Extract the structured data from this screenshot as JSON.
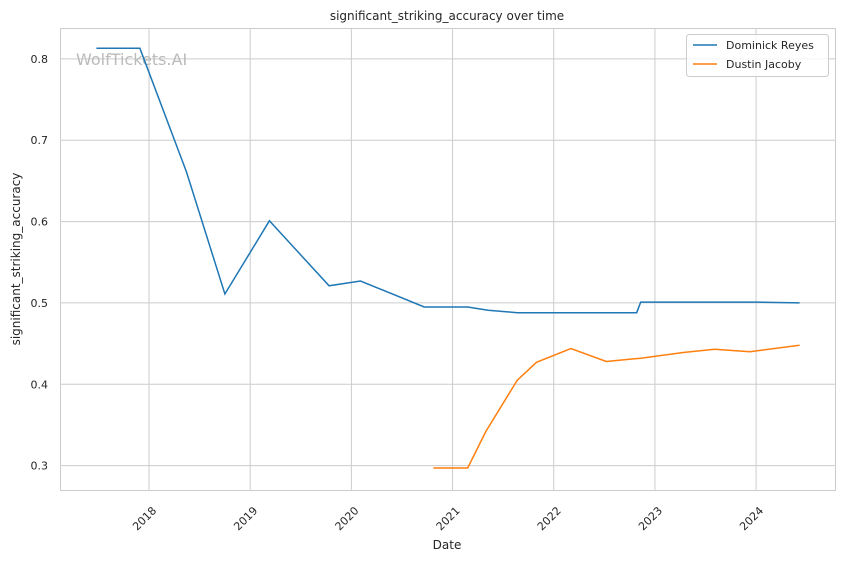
{
  "chart_data": {
    "type": "line",
    "title": "significant_striking_accuracy over time",
    "xlabel": "Date",
    "ylabel": "significant_striking_accuracy",
    "watermark": "WolfTickets.AI",
    "xlim": [
      2017.12,
      2024.78
    ],
    "ylim": [
      0.27,
      0.838
    ],
    "xticks": [
      2018,
      2019,
      2020,
      2021,
      2022,
      2023,
      2024
    ],
    "xtick_labels": [
      "2018",
      "2019",
      "2020",
      "2021",
      "2022",
      "2023",
      "2024"
    ],
    "yticks": [
      0.3,
      0.4,
      0.5,
      0.6,
      0.7,
      0.8
    ],
    "ytick_labels": [
      "0.3",
      "0.4",
      "0.5",
      "0.6",
      "0.7",
      "0.8"
    ],
    "grid": true,
    "legend_position": "top-right",
    "series": [
      {
        "name": "Dominick Reyes",
        "color": "#1f77b4",
        "x": [
          2017.48,
          2017.91,
          2018.37,
          2018.75,
          2019.19,
          2019.78,
          2020.09,
          2020.72,
          2021.15,
          2021.35,
          2021.64,
          2022.82,
          2022.86,
          2024.0,
          2024.43
        ],
        "y": [
          0.813,
          0.813,
          0.661,
          0.511,
          0.601,
          0.521,
          0.527,
          0.495,
          0.495,
          0.491,
          0.488,
          0.488,
          0.501,
          0.501,
          0.5
        ]
      },
      {
        "name": "Dustin Jacoby",
        "color": "#ff7f0e",
        "x": [
          2020.81,
          2021.15,
          2021.33,
          2021.64,
          2021.83,
          2022.17,
          2022.52,
          2022.86,
          2023.28,
          2023.59,
          2023.94,
          2024.43
        ],
        "y": [
          0.297,
          0.297,
          0.342,
          0.405,
          0.427,
          0.444,
          0.428,
          0.432,
          0.439,
          0.443,
          0.44,
          0.448
        ]
      }
    ]
  }
}
